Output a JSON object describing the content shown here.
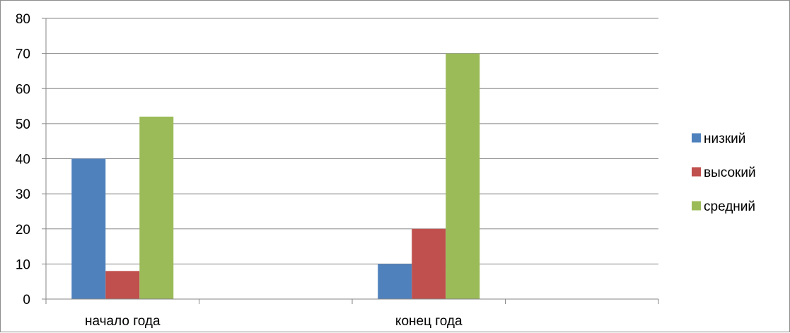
{
  "chart_data": {
    "type": "bar",
    "title": "",
    "xlabel": "",
    "ylabel": "",
    "categories": [
      "начало года",
      "",
      "конец года",
      ""
    ],
    "series": [
      {
        "name": "низкий",
        "color": "#4f81bd",
        "values": [
          40,
          null,
          10,
          null
        ]
      },
      {
        "name": "высокий",
        "color": "#c0504d",
        "values": [
          8,
          null,
          20,
          null
        ]
      },
      {
        "name": "средний",
        "color": "#9bbb59",
        "values": [
          52,
          null,
          70,
          null
        ]
      }
    ],
    "ylim": [
      0,
      80
    ],
    "yticks": [
      0,
      10,
      20,
      30,
      40,
      50,
      60,
      70,
      80
    ],
    "grid": true,
    "legend_position": "right"
  }
}
